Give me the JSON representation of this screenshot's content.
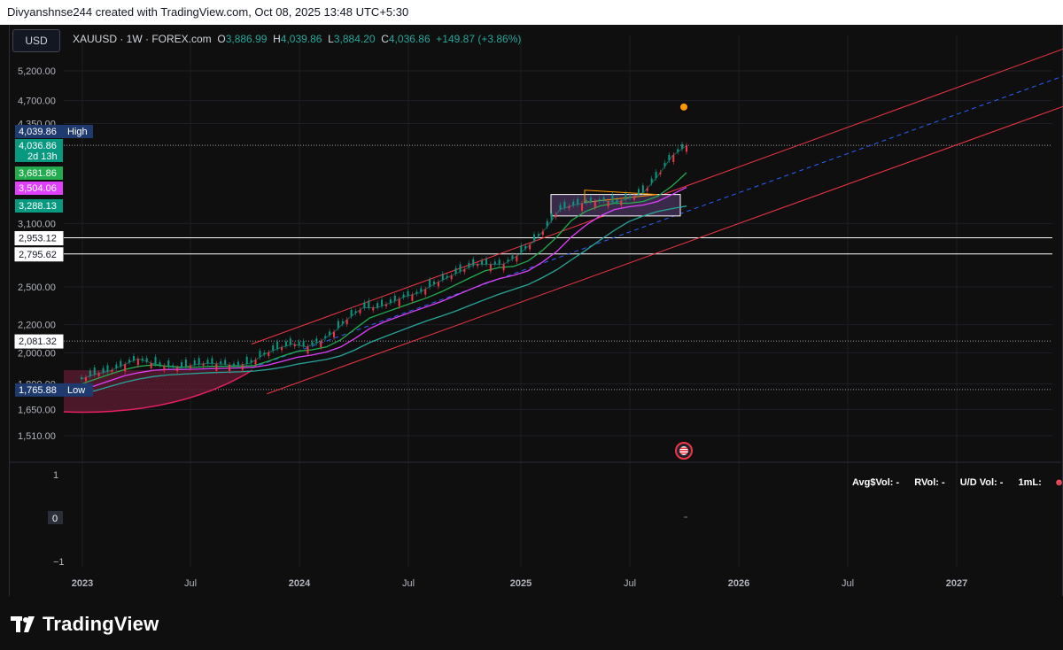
{
  "header": {
    "attribution": "Divyanshnse244 created with TradingView.com, Oct 08, 2025 13:48 UTC+5:30"
  },
  "toolbar": {
    "currency_button": "USD"
  },
  "symbol": {
    "name": "XAUUSD · 1W · FOREX.com",
    "o_label": "O",
    "o_value": "3,886.99",
    "h_label": "H",
    "h_value": "4,039.86",
    "l_label": "L",
    "l_value": "3,884.20",
    "c_label": "C",
    "c_value": "4,036.86",
    "change": "+149.87 (+3.86%)"
  },
  "chart_data": {
    "type": "line",
    "price_axis": {
      "scale": "log",
      "range": [
        1400,
        5800
      ],
      "ticks": [
        "5,200.00",
        "4,700.00",
        "4,350.00",
        "3,100.00",
        "2,500.00",
        "2,200.00",
        "2,000.00",
        "1,800.00",
        "1,650.00",
        "1,510.00"
      ]
    },
    "price_badges": [
      {
        "label": "4,039.86",
        "tag": "High",
        "color": "#1e3a6e",
        "price": 4039.86
      },
      {
        "label": "4,036.86",
        "sub": "2d 13h",
        "color": "#089981",
        "price": 4036.86
      },
      {
        "label": "3,681.86",
        "color": "#22ab4f",
        "price": 3681.86
      },
      {
        "label": "3,504.06",
        "color": "#e040fb",
        "price": 3504.06
      },
      {
        "label": "3,288.13",
        "color": "#089981",
        "price": 3288.13
      },
      {
        "label": "2,953.12",
        "color": "#ffffff",
        "price": 2953.12
      },
      {
        "label": "2,795.62",
        "color": "#ffffff",
        "price": 2795.62
      },
      {
        "label": "2,081.32",
        "color": "#ffffff",
        "price": 2081.32
      },
      {
        "label": "1,765.88",
        "tag": "Low",
        "color": "#1e3a6e",
        "price": 1765.88
      }
    ],
    "horizontal_levels": [
      2953.12,
      2795.62,
      2081.32,
      1765.88,
      4039.86
    ],
    "time_axis": [
      "2023",
      "Jul",
      "2024",
      "Jul",
      "2025",
      "Jul",
      "2026",
      "Jul",
      "2027"
    ],
    "series": [
      {
        "values": [
          1830,
          1860,
          1880,
          1920,
          1960,
          1930,
          1910,
          1900,
          1920,
          1930,
          1925,
          1915,
          1930,
          1990,
          2030,
          2060,
          2040,
          2080,
          2150,
          2250,
          2330,
          2330,
          2370,
          2420,
          2450,
          2520,
          2580,
          2640,
          2700,
          2700,
          2700,
          2780,
          2900,
          3050,
          3250,
          3300,
          3330,
          3350,
          3330,
          3380,
          3450,
          3650,
          3900,
          4036.86
        ],
        "color": "#26a69a"
      },
      {
        "values": [
          1800,
          1830,
          1860,
          1890,
          1910,
          1920,
          1910,
          1905,
          1905,
          1910,
          1910,
          1910,
          1915,
          1945,
          1980,
          2010,
          2020,
          2040,
          2090,
          2170,
          2250,
          2290,
          2330,
          2370,
          2410,
          2460,
          2520,
          2580,
          2640,
          2670,
          2680,
          2730,
          2830,
          2960,
          3130,
          3230,
          3290,
          3320,
          3320,
          3340,
          3400,
          3520,
          3681.86
        ],
        "color": "#22ab4f"
      },
      {
        "values": [
          1760,
          1790,
          1820,
          1850,
          1870,
          1885,
          1890,
          1890,
          1892,
          1895,
          1897,
          1900,
          1905,
          1920,
          1945,
          1970,
          1985,
          2005,
          2040,
          2100,
          2170,
          2220,
          2260,
          2300,
          2340,
          2380,
          2430,
          2480,
          2530,
          2570,
          2600,
          2640,
          2720,
          2820,
          2960,
          3080,
          3180,
          3250,
          3280,
          3300,
          3340,
          3420,
          3504.06
        ],
        "color": "#e040fb"
      },
      {
        "values": [
          1740,
          1760,
          1785,
          1810,
          1830,
          1845,
          1855,
          1860,
          1865,
          1870,
          1872,
          1875,
          1880,
          1890,
          1905,
          1925,
          1940,
          1955,
          1980,
          2020,
          2070,
          2110,
          2150,
          2190,
          2230,
          2265,
          2305,
          2350,
          2395,
          2440,
          2480,
          2520,
          2580,
          2650,
          2740,
          2830,
          2930,
          3030,
          3120,
          3180,
          3230,
          3260,
          3288.13
        ],
        "color": "#26a69a"
      }
    ],
    "channel": {
      "upper": [
        [
          2023.78,
          2060
        ],
        [
          2027.9,
          6200
        ]
      ],
      "lower": [
        [
          2023.85,
          1740
        ],
        [
          2027.9,
          5100
        ]
      ],
      "mid": [
        [
          2023.78,
          1900
        ],
        [
          2027.9,
          5650
        ]
      ]
    },
    "oscillator": {
      "ticks": [
        "1",
        "0",
        "−1"
      ],
      "value": "0"
    }
  },
  "volume_legend": {
    "avg": "Avg$Vol: -",
    "rvol": "RVol: -",
    "ud": "U/D Vol: -",
    "ml": "1mL:"
  },
  "footer": {
    "brand": "TradingView"
  }
}
